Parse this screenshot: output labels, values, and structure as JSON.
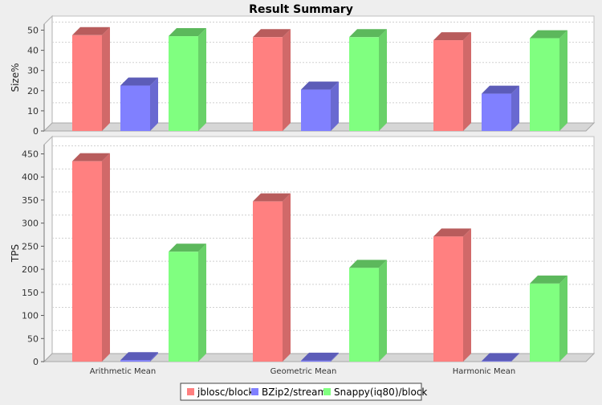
{
  "chart_data": {
    "type": "bar",
    "title": "Result Summary",
    "categories": [
      "Arithmetic Mean",
      "Geometric Mean",
      "Harmonic Mean"
    ],
    "series": [
      {
        "name": "jblosc/block",
        "color": "#ff8080"
      },
      {
        "name": "BZip2/stream",
        "color": "#8080ff"
      },
      {
        "name": "Snappy(iq80)/block",
        "color": "#80ff80"
      }
    ],
    "panels": [
      {
        "ylabel": "Size%",
        "ylim": [
          0,
          53
        ],
        "yticks": [
          0,
          10,
          20,
          30,
          40,
          50
        ],
        "values": [
          [
            47.5,
            22.5,
            47
          ],
          [
            46.5,
            20.5,
            46.5
          ],
          [
            45,
            18.5,
            46
          ]
        ]
      },
      {
        "ylabel": "TPS",
        "ylim": [
          0,
          470
        ],
        "yticks": [
          0,
          50,
          100,
          150,
          200,
          250,
          300,
          350,
          400,
          450
        ],
        "values": [
          [
            434,
            3,
            238
          ],
          [
            347,
            2,
            203
          ],
          [
            271,
            1,
            169
          ]
        ]
      }
    ],
    "grid": true,
    "legend": "bottom"
  }
}
